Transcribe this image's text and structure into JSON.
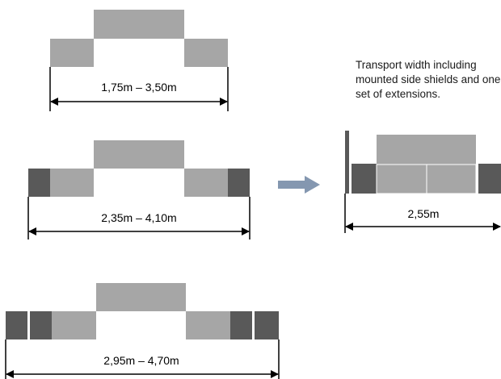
{
  "colors": {
    "center_block": "#a6a6a6",
    "side_block": "#a6a6a6",
    "extension_block": "#595959",
    "line": "#000000",
    "arrow": "#8497b0"
  },
  "configs": [
    {
      "label": "1,75m – 3,50m",
      "extension_sets": 0
    },
    {
      "label": "2,35m – 4,10m",
      "extension_sets": 1
    },
    {
      "label": "2,95m – 4,70m",
      "extension_sets": 2
    }
  ],
  "transport": {
    "note": "Transport width including mounted side shields and one set of extensions.",
    "label": "2,55m"
  },
  "icons": {
    "transform_arrow": "right-arrow-icon"
  }
}
